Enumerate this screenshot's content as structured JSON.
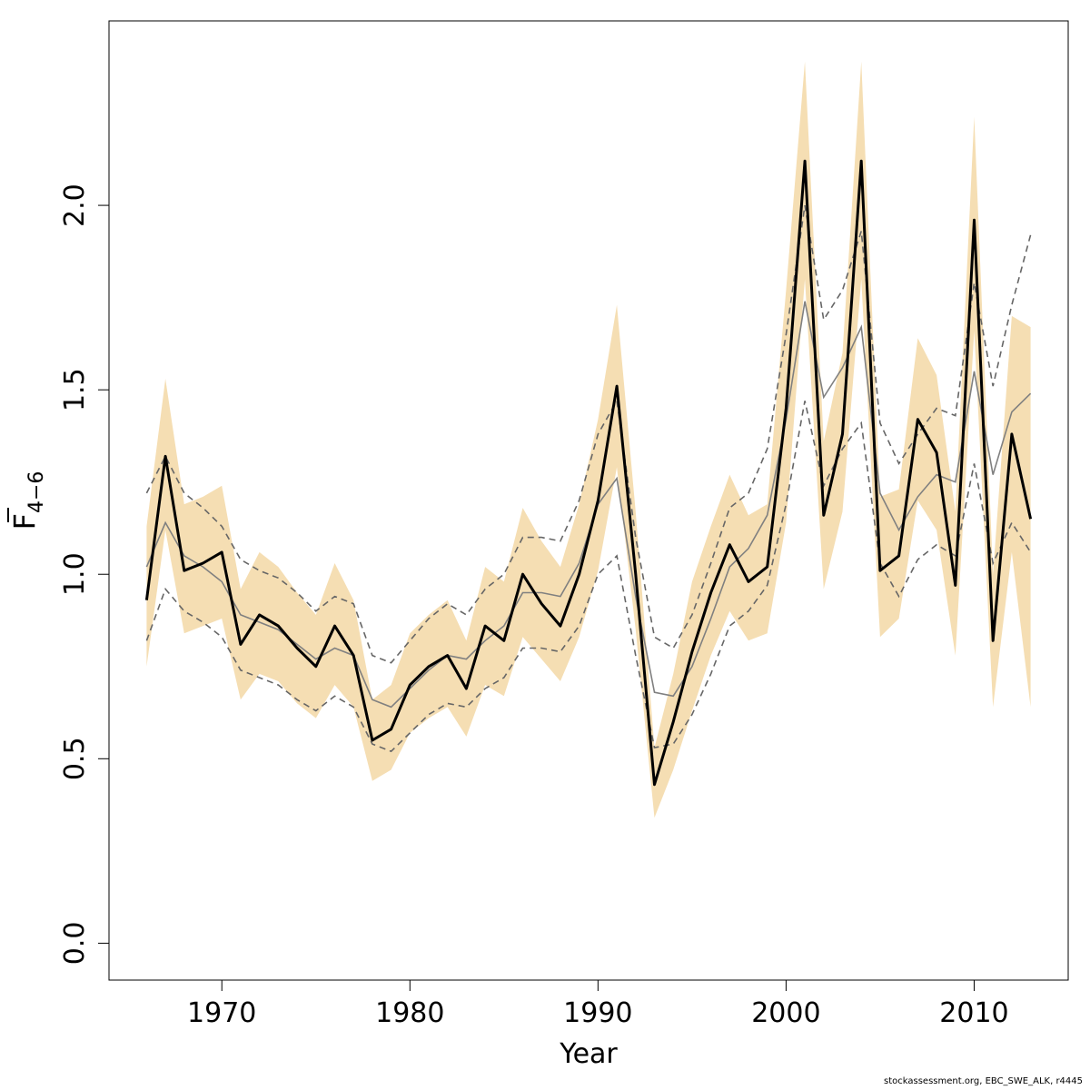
{
  "chart_data": {
    "type": "line",
    "xlabel": "Year",
    "ylabel": {
      "main": "F",
      "subscript": "4−6"
    },
    "xlim": [
      1964,
      2015
    ],
    "ylim": [
      -0.1,
      2.5
    ],
    "x_ticks": [
      1970,
      1980,
      1990,
      2000,
      2010
    ],
    "y_ticks": [
      0.0,
      0.5,
      1.0,
      1.5,
      2.0
    ],
    "y_tick_labels": [
      "0.0",
      "0.5",
      "1.0",
      "1.5",
      "2.0"
    ],
    "x": [
      1966,
      1967,
      1968,
      1969,
      1970,
      1971,
      1972,
      1973,
      1974,
      1975,
      1976,
      1977,
      1978,
      1979,
      1980,
      1981,
      1982,
      1983,
      1984,
      1985,
      1986,
      1987,
      1988,
      1989,
      1990,
      1991,
      1992,
      1993,
      1994,
      1995,
      1996,
      1997,
      1998,
      1999,
      2000,
      2001,
      2002,
      2003,
      2004,
      2005,
      2006,
      2007,
      2008,
      2009,
      2010,
      2011,
      2012,
      2013
    ],
    "series": [
      {
        "role": "estimate",
        "values": [
          0.93,
          1.32,
          1.01,
          1.03,
          1.06,
          0.81,
          0.89,
          0.86,
          0.8,
          0.75,
          0.86,
          0.78,
          0.55,
          0.58,
          0.7,
          0.75,
          0.78,
          0.69,
          0.86,
          0.82,
          1.0,
          0.92,
          0.86,
          1.0,
          1.2,
          1.51,
          1.0,
          0.43,
          0.6,
          0.79,
          0.95,
          1.08,
          0.98,
          1.02,
          1.45,
          2.12,
          1.16,
          1.38,
          2.12,
          1.01,
          1.05,
          1.42,
          1.33,
          0.97,
          1.96,
          0.82,
          1.38,
          1.15
        ],
        "color": "#000000"
      },
      {
        "role": "confidence-band",
        "lower": [
          0.75,
          1.12,
          0.84,
          0.86,
          0.88,
          0.66,
          0.73,
          0.71,
          0.65,
          0.61,
          0.7,
          0.64,
          0.44,
          0.47,
          0.57,
          0.61,
          0.64,
          0.56,
          0.7,
          0.67,
          0.83,
          0.77,
          0.71,
          0.83,
          1.01,
          1.29,
          0.85,
          0.34,
          0.47,
          0.63,
          0.78,
          0.9,
          0.82,
          0.84,
          1.14,
          1.8,
          0.96,
          1.17,
          1.8,
          0.83,
          0.88,
          1.2,
          1.12,
          0.78,
          1.66,
          0.64,
          1.06,
          0.64
        ],
        "upper": [
          1.13,
          1.53,
          1.19,
          1.21,
          1.24,
          0.96,
          1.06,
          1.02,
          0.95,
          0.89,
          1.03,
          0.93,
          0.66,
          0.7,
          0.84,
          0.89,
          0.93,
          0.82,
          1.02,
          0.98,
          1.18,
          1.09,
          1.02,
          1.19,
          1.42,
          1.73,
          1.17,
          0.53,
          0.73,
          0.98,
          1.13,
          1.27,
          1.16,
          1.19,
          1.77,
          2.39,
          1.36,
          1.6,
          2.39,
          1.21,
          1.23,
          1.64,
          1.54,
          1.17,
          2.24,
          1.0,
          1.7,
          1.67
        ],
        "color": "#f5deb3"
      },
      {
        "role": "alternative-estimate",
        "values": [
          1.02,
          1.14,
          1.05,
          1.02,
          0.98,
          0.89,
          0.87,
          0.85,
          0.81,
          0.77,
          0.8,
          0.78,
          0.66,
          0.64,
          0.69,
          0.74,
          0.78,
          0.77,
          0.82,
          0.86,
          0.95,
          0.95,
          0.94,
          1.03,
          1.19,
          1.26,
          0.94,
          0.68,
          0.67,
          0.75,
          0.88,
          1.02,
          1.07,
          1.16,
          1.42,
          1.74,
          1.48,
          1.56,
          1.67,
          1.22,
          1.12,
          1.21,
          1.27,
          1.25,
          1.55,
          1.27,
          1.44,
          1.49
        ],
        "color": "#808080"
      },
      {
        "role": "alternative-lower",
        "values": [
          0.82,
          0.96,
          0.9,
          0.87,
          0.83,
          0.74,
          0.72,
          0.7,
          0.66,
          0.63,
          0.67,
          0.64,
          0.54,
          0.52,
          0.57,
          0.62,
          0.65,
          0.64,
          0.69,
          0.72,
          0.8,
          0.8,
          0.79,
          0.86,
          1.0,
          1.05,
          0.78,
          0.53,
          0.54,
          0.62,
          0.73,
          0.86,
          0.9,
          0.97,
          1.19,
          1.47,
          1.24,
          1.34,
          1.41,
          1.03,
          0.94,
          1.04,
          1.08,
          1.05,
          1.3,
          1.03,
          1.14,
          1.06
        ],
        "color": "#666666"
      },
      {
        "role": "alternative-upper",
        "values": [
          1.22,
          1.32,
          1.22,
          1.18,
          1.13,
          1.04,
          1.01,
          0.99,
          0.95,
          0.9,
          0.94,
          0.92,
          0.78,
          0.76,
          0.82,
          0.88,
          0.92,
          0.89,
          0.96,
          1.0,
          1.1,
          1.1,
          1.09,
          1.2,
          1.38,
          1.47,
          1.1,
          0.83,
          0.8,
          0.89,
          1.03,
          1.18,
          1.22,
          1.34,
          1.65,
          2.0,
          1.69,
          1.77,
          1.93,
          1.41,
          1.3,
          1.38,
          1.45,
          1.43,
          1.79,
          1.51,
          1.73,
          1.92
        ],
        "color": "#666666"
      }
    ]
  },
  "footer": "stockassessment.org, EBC_SWE_ALK, r4445"
}
